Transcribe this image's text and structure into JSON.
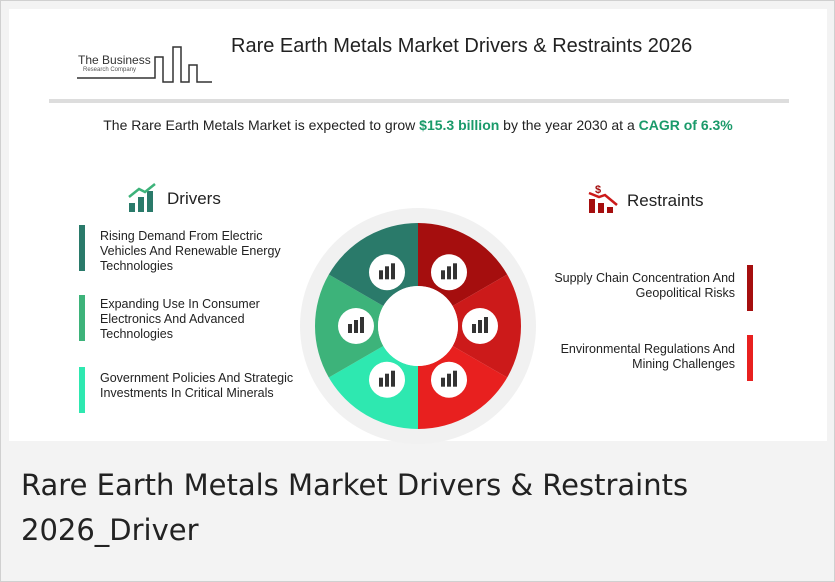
{
  "logo": {
    "name": "The Business",
    "sub": "Research Company"
  },
  "title": "Rare Earth Metals Market Drivers & Restraints 2026",
  "tagline": {
    "lead": "The Rare Earth Metals Market is expected to grow ",
    "amount": "$15.3 billion",
    "mid": " by the year 2030 at a ",
    "cagr": "CAGR of 6.3%"
  },
  "drivers": {
    "heading": "Drivers",
    "items": [
      "Rising Demand From Electric Vehicles And Renewable Energy Technologies",
      "Expanding Use In Consumer Electronics And Advanced Technologies",
      "Government Policies And Strategic Investments In Critical Minerals"
    ]
  },
  "restraints": {
    "heading": "Restraints",
    "items": [
      "Supply Chain Concentration And Geopolitical Risks",
      "Environmental Regulations And Mining Challenges"
    ]
  },
  "caption": "Rare Earth Metals Market Drivers & Restraints 2026_Driver"
}
